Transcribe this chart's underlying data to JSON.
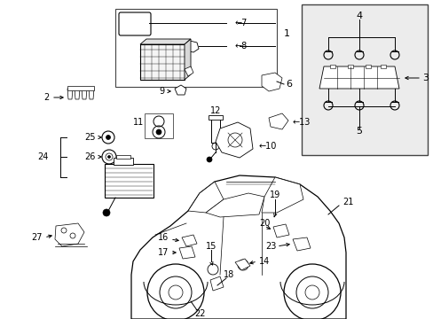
{
  "bg_color": "#ffffff",
  "line_color": "#000000",
  "gray_box": "#e8e8e8",
  "fs": 7.0,
  "fw": "normal",
  "coord": {
    "xlim": [
      0,
      489
    ],
    "ylim": [
      0,
      360
    ]
  }
}
